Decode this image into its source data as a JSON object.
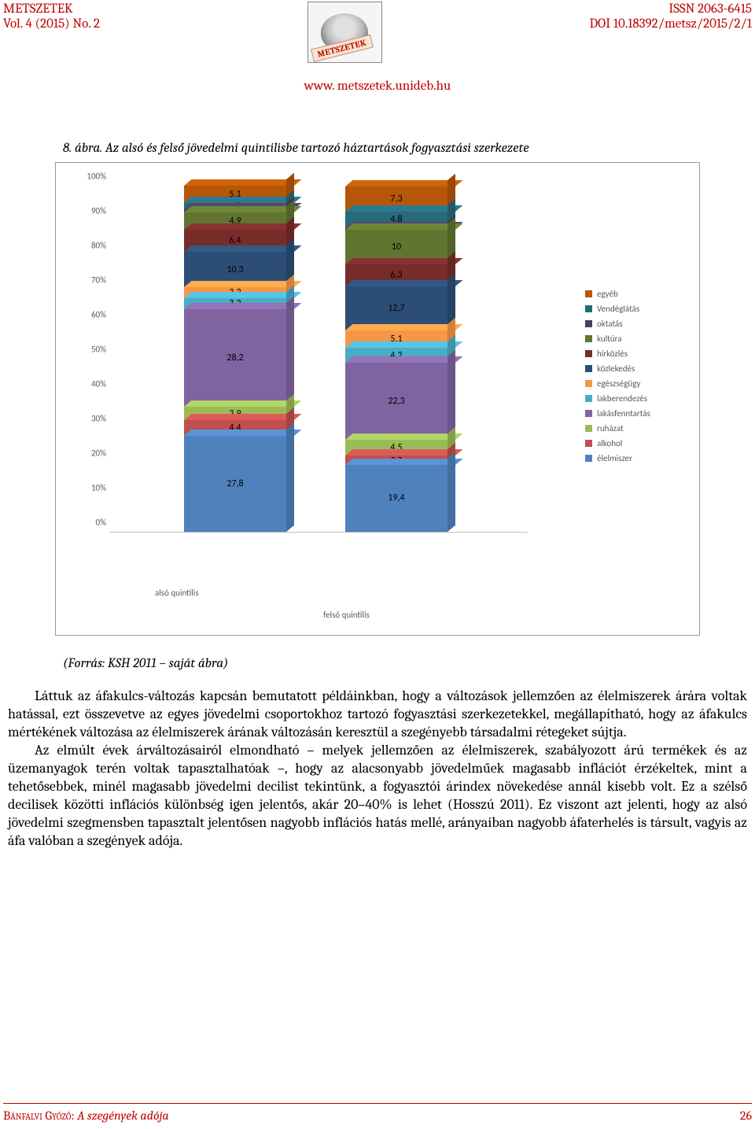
{
  "header": {
    "journal": "METSZETEK",
    "volume": "Vol. 4 (2015) No. 2",
    "issn": "ISSN 2063-6415",
    "doi": "DOI 10.18392/metsz/2015/2/1",
    "logo_band": "METSZETEK",
    "url": "www. metszetek.unideb.hu"
  },
  "caption": "8. ábra. Az alsó és felső jövedelmi quintilisbe tartozó háztartások fogyasztási szerkezete",
  "source": "(Forrás: KSH 2011 – saját ábra)",
  "chart": {
    "type": "stacked_bar_3d",
    "ylim": [
      0,
      100
    ],
    "ytick_step": 10,
    "ytick_suffix": "%",
    "background_color": "#ffffff",
    "categories": [
      "alsó quintilis",
      "felső quintilis"
    ],
    "series": [
      {
        "key": "elelmiszer",
        "label": "élelmiszer",
        "color": "#4f81bd"
      },
      {
        "key": "alkohol",
        "label": "alkohol",
        "color": "#c0504d"
      },
      {
        "key": "ruhazat",
        "label": "ruházat",
        "color": "#9bbb59"
      },
      {
        "key": "lakasfenntartas",
        "label": "lakásfenntartás",
        "color": "#8064a2"
      },
      {
        "key": "lakberendezes",
        "label": "lakberendezés",
        "color": "#4bacc6"
      },
      {
        "key": "egeszsegugy",
        "label": "egészségügy",
        "color": "#f79646"
      },
      {
        "key": "kozlekedes",
        "label": "közlekedés",
        "color": "#2c4d75"
      },
      {
        "key": "hirkozles",
        "label": "hírközlés",
        "color": "#772c2a"
      },
      {
        "key": "kultura",
        "label": "kultúra",
        "color": "#5f7530"
      },
      {
        "key": "oktatas",
        "label": "oktatás",
        "color": "#4d3b62"
      },
      {
        "key": "vendeglatas",
        "label": "Vendéglátás",
        "color": "#276a7c"
      },
      {
        "key": "egyeb",
        "label": "egyéb",
        "color": "#b65708"
      }
    ],
    "data": {
      "also": {
        "elelmiszer": 27.8,
        "alkohol": 4.4,
        "ruhazat": 3.9,
        "lakasfenntartas": 28.2,
        "lakberendezes": 3.2,
        "egeszsegugy": 3.2,
        "kozlekedes": 10.3,
        "hirkozles": 6.4,
        "kultura": 4.9,
        "oktatas": 0.9,
        "vendeglatas": 1.8,
        "egyeb": 5.1
      },
      "felso": {
        "elelmiszer": 19.4,
        "alkohol": 2.7,
        "ruhazat": 4.5,
        "lakasfenntartas": 22.3,
        "lakberendezes": 4.2,
        "egeszsegugy": 5.1,
        "kozlekedes": 12.7,
        "hirkozles": 6.3,
        "kultura": 10.0,
        "oktatas": 0.6,
        "vendeglatas": 4.8,
        "egyeb": 7.3
      }
    },
    "label_fontsize": 12,
    "label_font": "Calibri"
  },
  "body": {
    "p1": "Láttuk az áfakulcs-változás kapcsán bemutatott példáinkban, hogy a változások jellemzően az élelmiszerek árára voltak hatással, ezt összevetve az egyes jövedelmi csoportokhoz tartozó fogyasztási szerkezetekkel, megállapítható, hogy az áfakulcs mértékének változása az élelmiszerek árának változásán keresztül a szegényebb társadalmi rétegeket sújtja.",
    "p2": "Az elmúlt évek árváltozásairól elmondható – melyek jellemzően az élelmiszerek, szabályozott árú termékek és az üzemanyagok terén voltak tapasztalhatóak –, hogy az alacsonyabb jövedelműek magasabb inflációt érzékeltek, mint a tehetősebbek, minél magasabb jövedelmi decilist tekintünk, a fogyasztói árindex növekedése annál kisebb volt. Ez a szélső decilisek közötti inflációs különbség igen jelentős, akár 20–40% is lehet (Hosszú 2011). Ez viszont azt jelenti, hogy az alsó jövedelmi szegmensben tapasztalt jelentősen nagyobb inflációs hatás mellé, arányaiban nagyobb áfaterhelés is társult, vagyis az áfa valóban a szegények adója."
  },
  "footer": {
    "author_sc": "Bánfalvi Győző:",
    "title_italic": "A szegények adója",
    "page": "26"
  }
}
